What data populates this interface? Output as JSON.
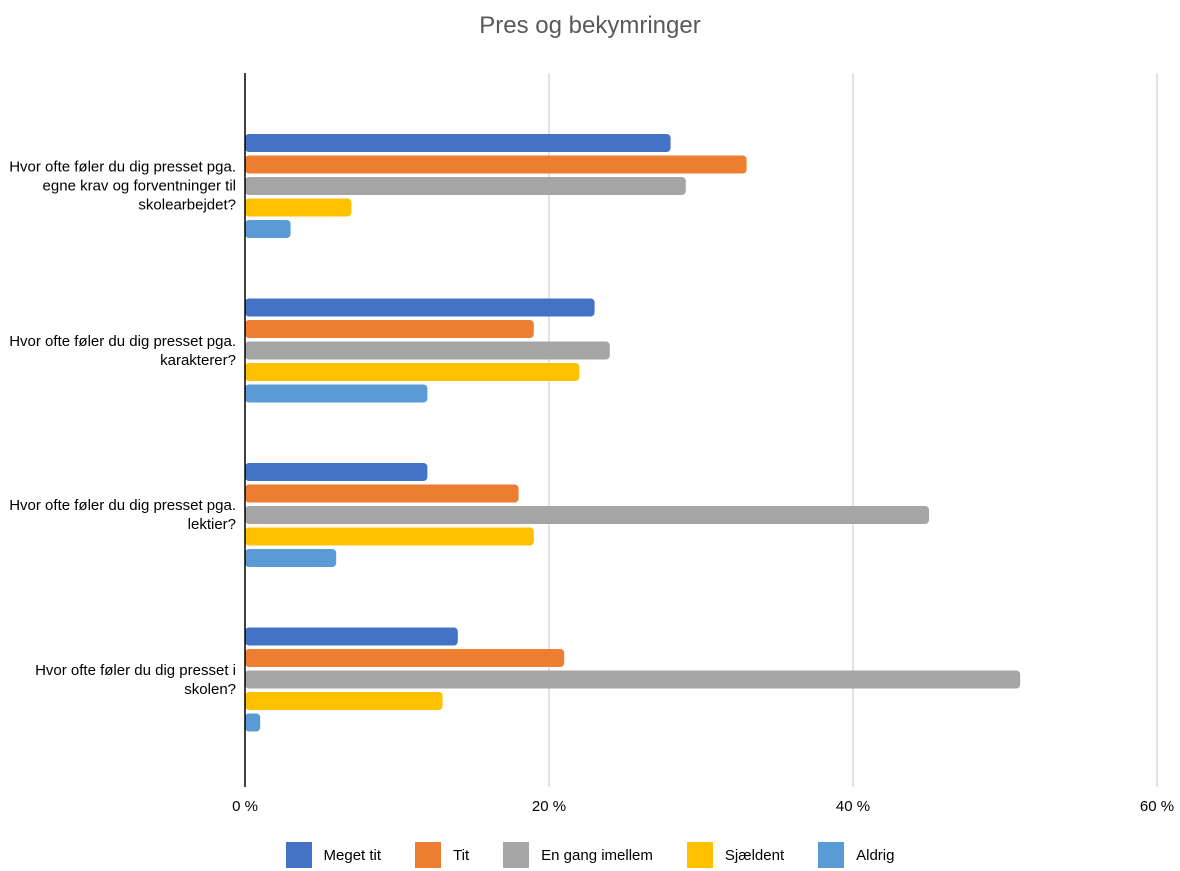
{
  "chart_data": {
    "type": "bar",
    "orientation": "horizontal",
    "title": "Pres og bekymringer",
    "xlabel": "",
    "ylabel": "",
    "xlim": [
      0,
      60
    ],
    "x_ticks": [
      0,
      20,
      40,
      60
    ],
    "x_tick_labels": [
      "0 %",
      "20 %",
      "40 %",
      "60 %"
    ],
    "grid": "vertical",
    "legend_position": "bottom",
    "categories": [
      "Hvor ofte føler du dig presset pga. egne krav og forventninger til skolearbejdet?",
      "Hvor ofte føler du dig presset pga. karakterer?",
      "Hvor ofte føler du dig presset pga. lektier?",
      "Hvor ofte føler du dig presset i skolen?"
    ],
    "series": [
      {
        "name": "Meget tit",
        "color": "#4472C4",
        "values": [
          28,
          23,
          12,
          14
        ]
      },
      {
        "name": "Tit",
        "color": "#ED7D31",
        "values": [
          33,
          19,
          18,
          21
        ]
      },
      {
        "name": "En gang imellem",
        "color": "#A5A5A5",
        "values": [
          29,
          24,
          45,
          51
        ]
      },
      {
        "name": "Sjældent",
        "color": "#FFC000",
        "values": [
          7,
          22,
          19,
          13
        ]
      },
      {
        "name": "Aldrig",
        "color": "#5B9BD5",
        "values": [
          3,
          12,
          6,
          1
        ]
      }
    ]
  }
}
